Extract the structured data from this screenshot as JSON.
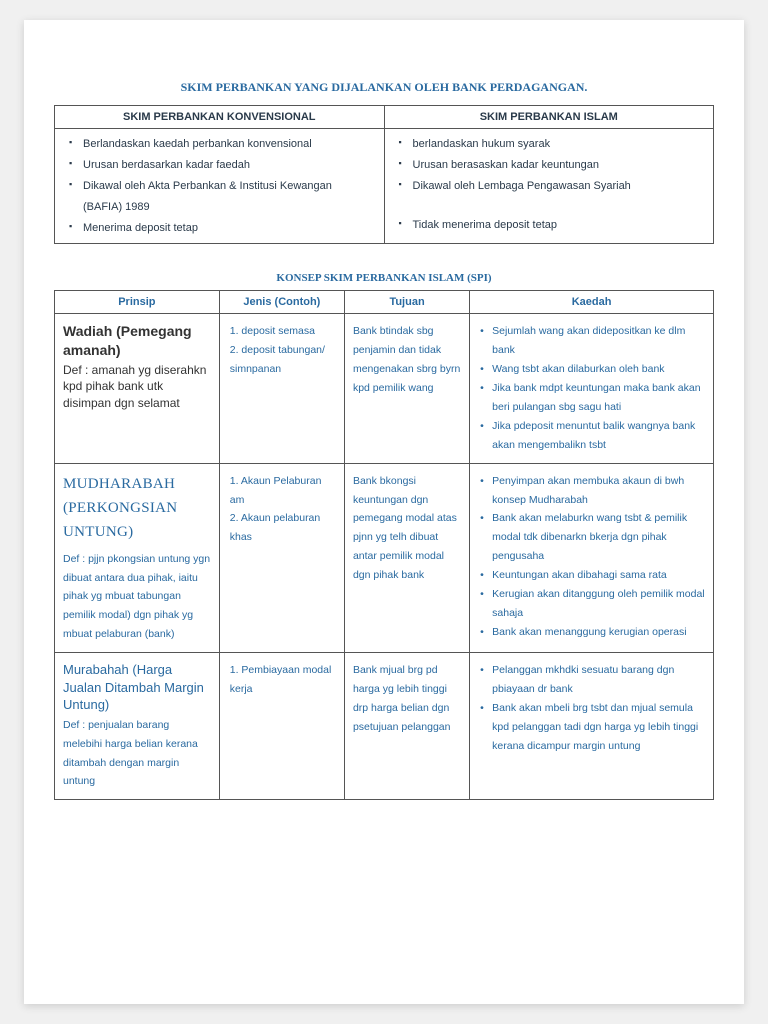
{
  "title1": "SKIM PERBANKAN YANG DIJALANKAN OLEH BANK PERDAGANGAN.",
  "t1": {
    "h1": "SKIM PERBANKAN KONVENSIONAL",
    "h2": "SKIM PERBANKAN ISLAM",
    "left": [
      "Berlandaskan kaedah perbankan konvensional",
      "Urusan berdasarkan kadar faedah",
      "Dikawal oleh Akta Perbankan & Institusi Kewangan (BAFIA) 1989",
      "Menerima deposit tetap"
    ],
    "right": [
      "berlandaskan hukum syarak",
      "Urusan berasaskan kadar keuntungan",
      "Dikawal oleh Lembaga Pengawasan Syariah",
      "Tidak menerima deposit tetap"
    ]
  },
  "title2": "KONSEP SKIM PERBANKAN ISLAM (SPI)",
  "t2": {
    "headers": {
      "c1": "Prinsip",
      "c2": "Jenis (Contoh)",
      "c3": "Tujuan",
      "c4": "Kaedah"
    },
    "rows": [
      {
        "prinsip_head": "Wadiah (Pemegang amanah)",
        "prinsip_style": "head1",
        "def": "Def : amanah yg diserahkn kpd pihak bank utk disimpan dgn selamat",
        "def_style": "def",
        "jenis": [
          "1. deposit semasa",
          "2. deposit tabungan/ simnpanan"
        ],
        "tujuan": "Bank btindak sbg penjamin dan tidak mengenakan sbrg byrn kpd pemilik wang",
        "kaedah": [
          "Sejumlah wang akan didepositkan ke dlm bank",
          "Wang tsbt akan dilaburkan oleh bank",
          "Jika bank mdpt keuntungan maka bank akan beri pulangan sbg sagu hati",
          "Jika pdeposit menuntut balik wangnya bank akan mengembalikn tsbt"
        ]
      },
      {
        "prinsip_head": "MUDHARABAH (PERKONGSIAN UNTUNG)",
        "prinsip_style": "head2",
        "def": "Def : pjjn pkongsian untung ygn dibuat antara dua pihak, iaitu pihak yg mbuat tabungan pemilik modal) dgn pihak yg mbuat pelaburan (bank)",
        "def_style": "def-blue",
        "jenis": [
          "1.  Akaun Pelaburan am",
          "2.  Akaun pelaburan khas"
        ],
        "tujuan": "Bank bkongsi keuntungan dgn pemegang modal atas pjnn yg telh dibuat antar pemilik modal dgn pihak bank",
        "kaedah": [
          "Penyimpan akan membuka akaun di bwh konsep Mudharabah",
          "Bank akan melaburkn wang tsbt & pemilik modal tdk dibenarkn bkerja dgn pihak pengusaha",
          "Keuntungan akan dibahagi sama rata",
          "Kerugian akan ditanggung oleh pemilik modal sahaja",
          "Bank akan menanggung kerugian operasi"
        ]
      },
      {
        "prinsip_head": "Murabahah (Harga Jualan Ditambah Margin Untung)",
        "prinsip_style": "head3",
        "def": "Def : penjualan barang melebihi harga belian kerana ditambah dengan margin untung",
        "def_style": "def-blue",
        "jenis": [
          "1.   Pembiayaan modal kerja"
        ],
        "tujuan": "Bank mjual brg pd harga yg lebih tinggi drp harga belian dgn psetujuan pelanggan",
        "kaedah": [
          "Pelanggan mkhdki sesuatu barang dgn pbiayaan dr bank",
          "Bank akan mbeli brg tsbt dan mjual semula kpd pelanggan tadi dgn harga yg lebih tinggi kerana dicampur margin untung"
        ]
      }
    ]
  }
}
